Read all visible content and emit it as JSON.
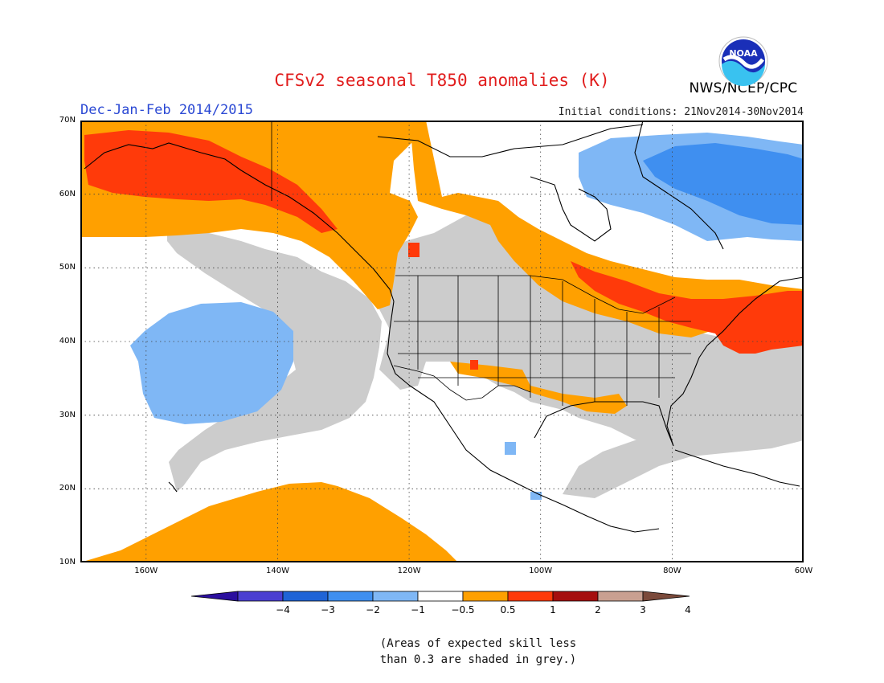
{
  "title": "CFSv2 seasonal T850 anomalies (K)",
  "season": "Dec-Jan-Feb 2014/2015",
  "initial_conditions": "Initial conditions: 21Nov2014-30Nov2014",
  "agency": "NWS/NCEP/CPC",
  "logo_text": "NOAA",
  "lat_labels": [
    "70N",
    "60N",
    "50N",
    "40N",
    "30N",
    "20N",
    "10N"
  ],
  "lon_labels": [
    "160W",
    "140W",
    "120W",
    "100W",
    "80W",
    "60W"
  ],
  "colorbar": {
    "labels": [
      "−4",
      "−3",
      "−2",
      "−1",
      "−0.5",
      "0.5",
      "1",
      "2",
      "3",
      "4"
    ],
    "colors": [
      "#2b0f9e",
      "#4b3fd1",
      "#1f64d6",
      "#3f8ff0",
      "#7fb7f5",
      "#ffffff",
      "#ffa000",
      "#ff3a0a",
      "#a50e0e",
      "#c9a091",
      "#7b4a3b"
    ]
  },
  "shading_colors": {
    "grey_skill": "#cccccc",
    "warm_1": "#ffa000",
    "warm_2": "#ff3a0a",
    "cool_1": "#7fb7f5",
    "cool_2": "#3f8ff0"
  },
  "note": {
    "line1": "(Areas of expected skill less",
    "line2": "than 0.3 are shaded in grey.)"
  }
}
